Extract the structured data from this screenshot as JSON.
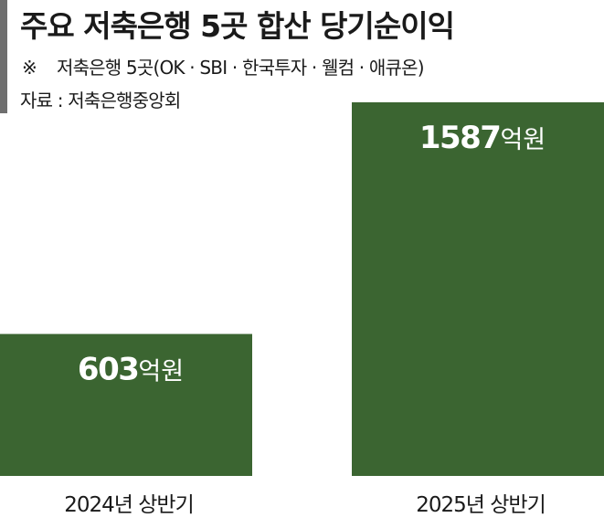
{
  "header": {
    "title": "주요 저축은행 5곳 합산 당기순이익",
    "note_mark": "※",
    "note_text": "저축은행 5곳(OK · SBI · 한국투자 · 웰컴 · 애큐온)",
    "source": "자료 : 저축은행중앙회"
  },
  "colors": {
    "bar": "#3b6531",
    "accent": "#6f6f6f"
  },
  "chart_data": {
    "type": "bar",
    "title": "주요 저축은행 5곳 합산 당기순이익",
    "categories": [
      "2024년 상반기",
      "2025년 상반기"
    ],
    "values": [
      603,
      1587
    ],
    "unit": "억원",
    "data_labels": [
      "603",
      "1587"
    ],
    "ylim": [
      0,
      1587
    ],
    "grid": false
  }
}
